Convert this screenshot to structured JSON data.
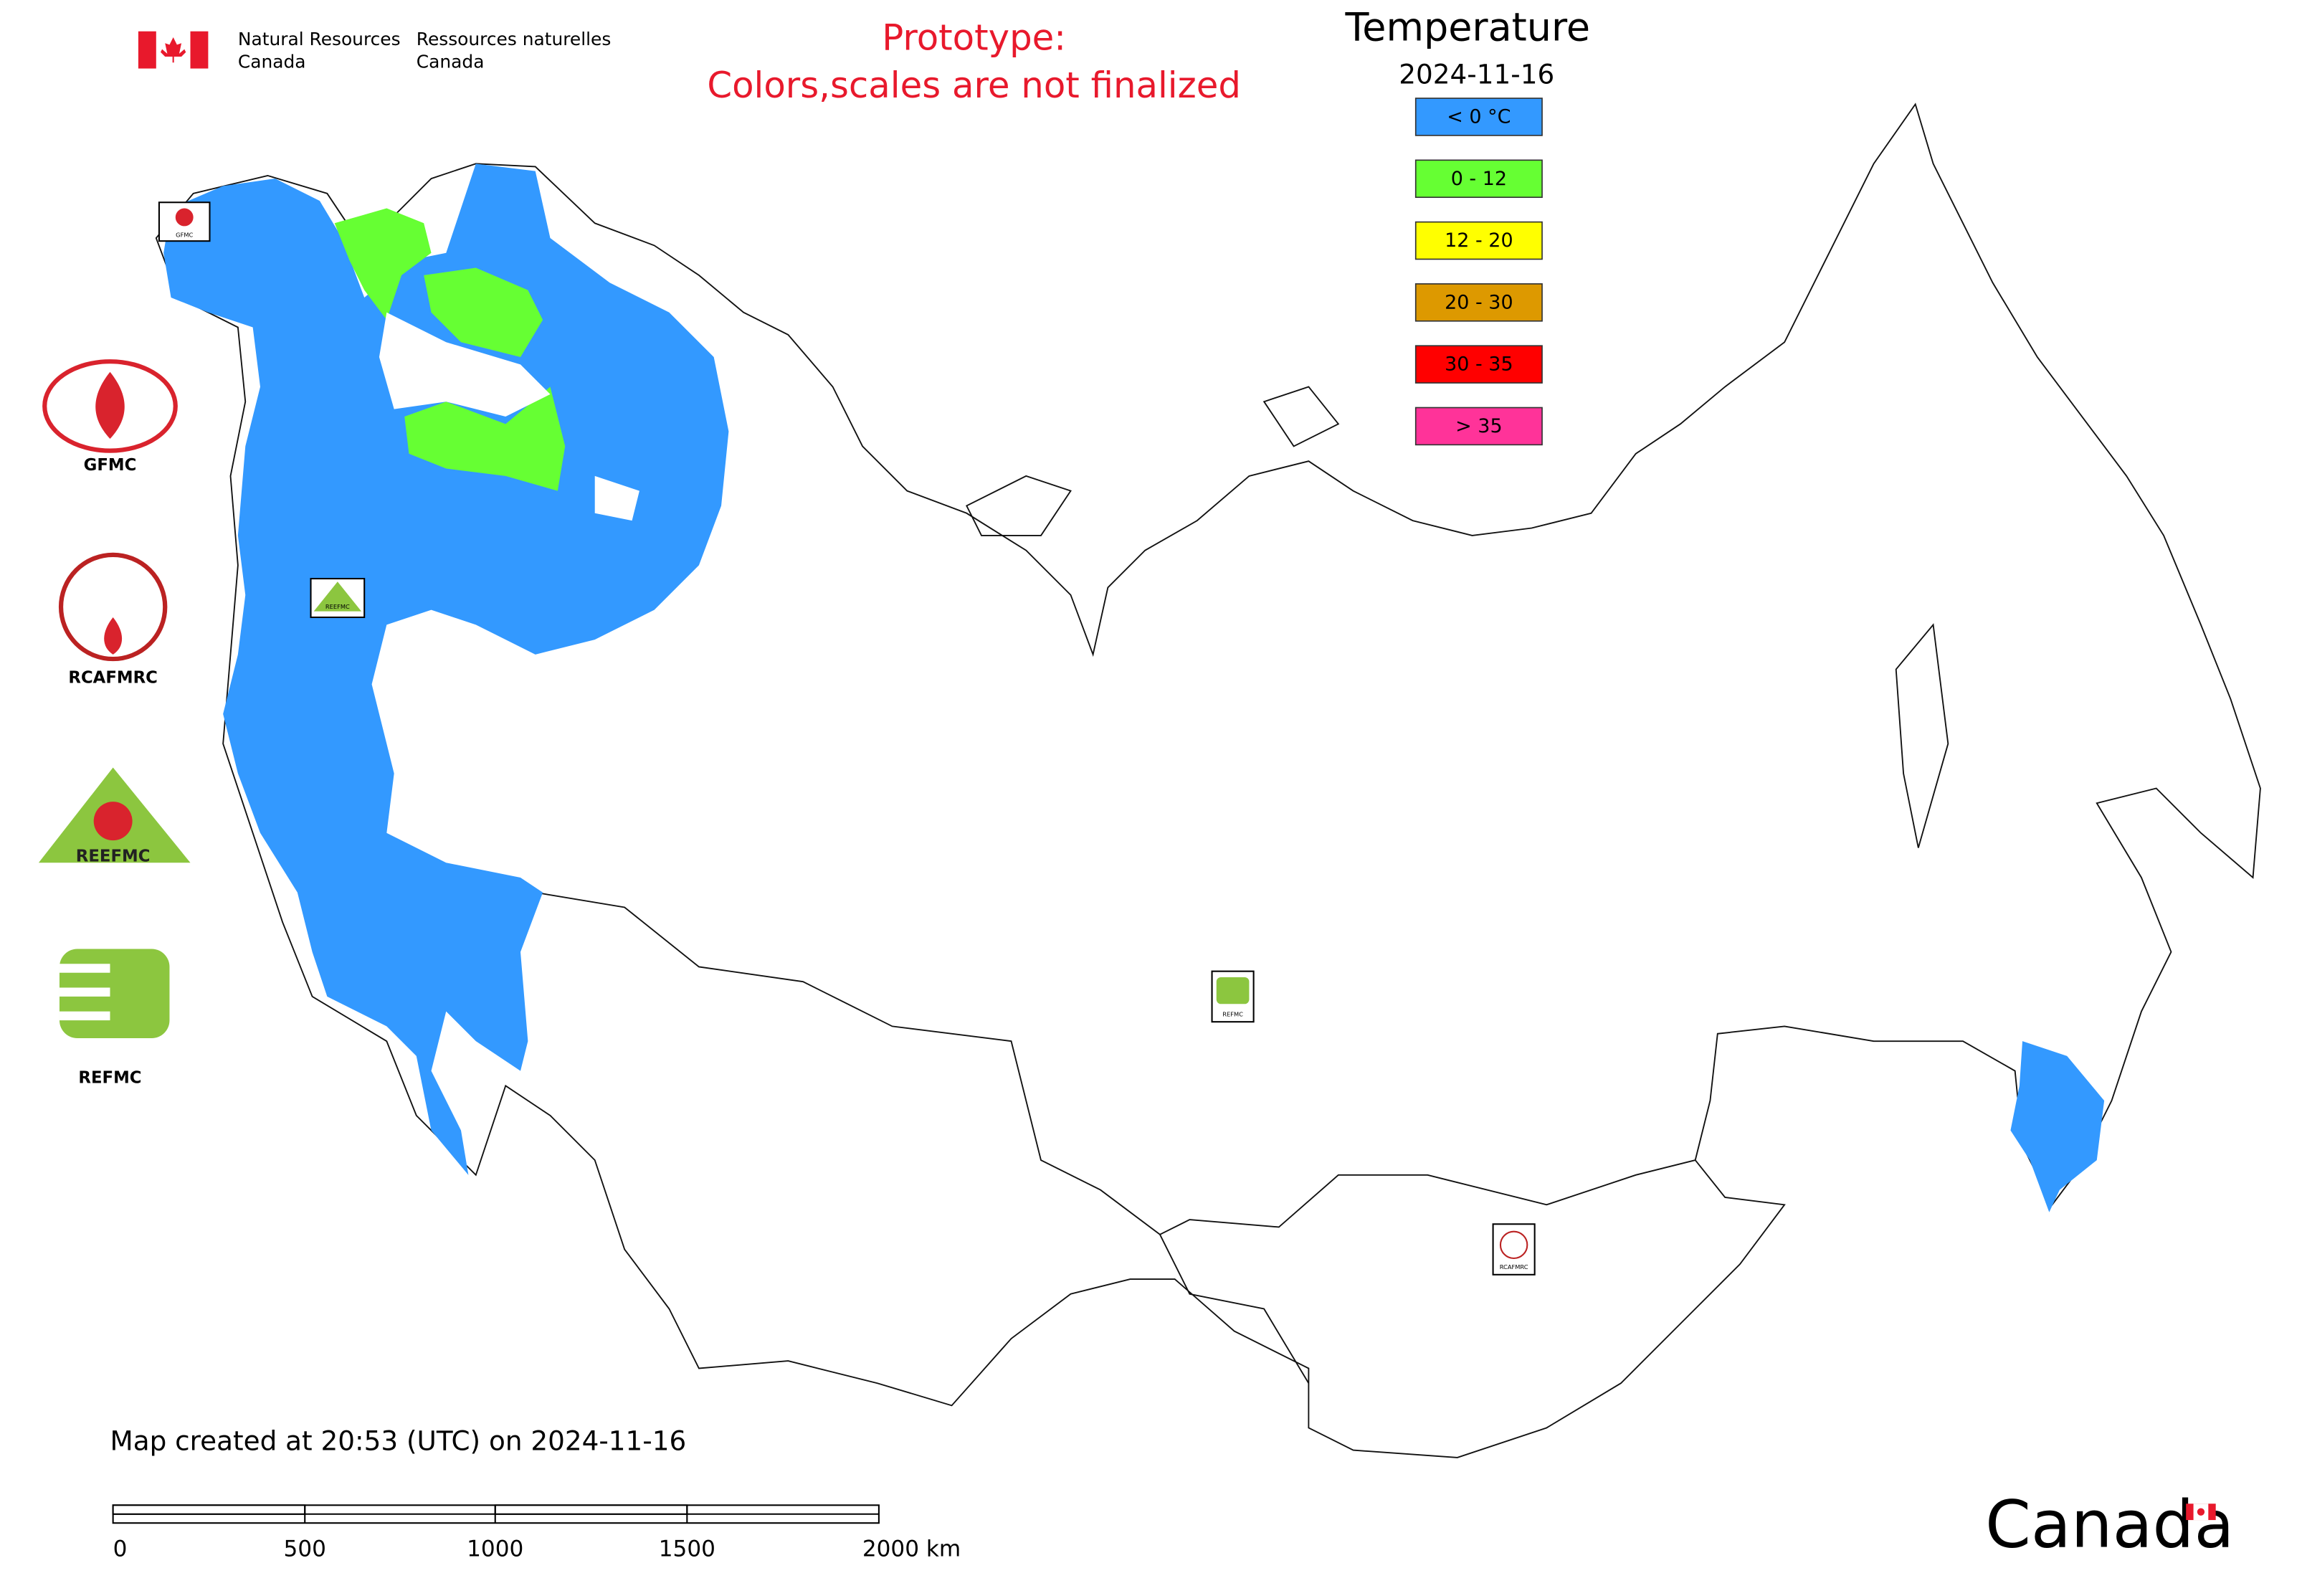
{
  "header": {
    "agency_en_line1": "Natural Resources",
    "agency_en_line2": "Canada",
    "agency_fr_line1": "Ressources naturelles",
    "agency_fr_line2": "Canada"
  },
  "notice": {
    "line1": "Prototype:",
    "line2": "Colors,scales are not finalized"
  },
  "legend": {
    "title": "Temperature",
    "date": "2024-11-16",
    "items": [
      {
        "label": "< 0 °C",
        "color": "#3399ff"
      },
      {
        "label": "0 - 12",
        "color": "#66ff33"
      },
      {
        "label": "12 - 20",
        "color": "#ffff00"
      },
      {
        "label": "20 - 30",
        "color": "#dd9900"
      },
      {
        "label": "30 - 35",
        "color": "#ff0000"
      },
      {
        "label": "> 35",
        "color": "#ff3399"
      }
    ]
  },
  "logos": [
    {
      "label": "GFMC"
    },
    {
      "label": "RCAFMRC"
    },
    {
      "label": "REEFMC"
    },
    {
      "label": "REFMC"
    }
  ],
  "footer": {
    "created": "Map created at 20:53 (UTC) on 2024-11-16",
    "scale_labels": [
      "0",
      "500",
      "1000",
      "1500",
      "2000 km"
    ],
    "wordmark": "Canada"
  }
}
